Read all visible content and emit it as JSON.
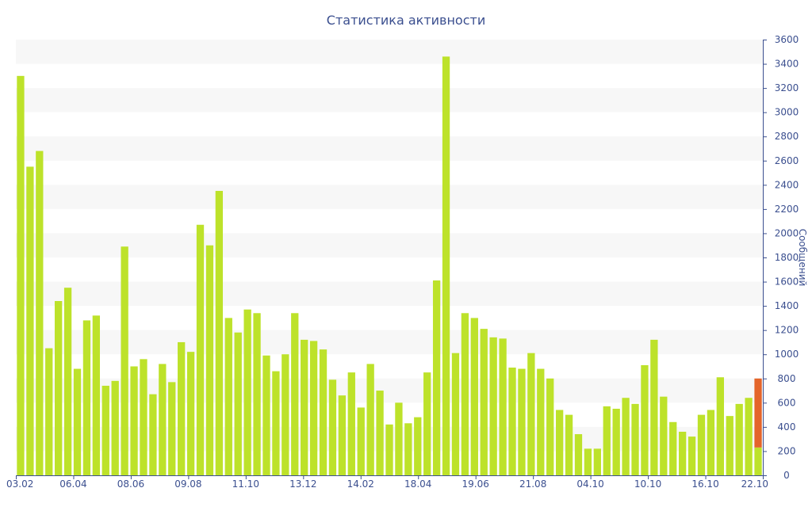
{
  "chart_data": {
    "type": "bar",
    "title": "Статистика активности",
    "xlabel": "",
    "ylabel": "Сообщений",
    "ylim": [
      0,
      3600
    ],
    "ytick_step": 200,
    "grid": "alternating horizontal bands",
    "y_axis_side": "right",
    "x_tick_labels": [
      "03.02",
      "06.04",
      "08.06",
      "09.08",
      "11.10",
      "13.12",
      "14.02",
      "18.04",
      "19.06",
      "21.08",
      "04.10",
      "10.10",
      "16.10",
      "22.10"
    ],
    "colors": {
      "bar": "#bde22a",
      "highlight": "#e4652a",
      "text": "#3b4f8f",
      "band": "#f7f7f7",
      "axis": "#3b4f8f"
    },
    "series": [
      {
        "values": [
          3300,
          2550,
          2680,
          1050,
          1440,
          1550,
          880,
          1280,
          1320,
          740,
          780,
          1890,
          900,
          960,
          670,
          920,
          770,
          1100,
          1020,
          2070,
          1900,
          2350,
          1300,
          1180,
          1370,
          1340,
          990,
          860,
          1000,
          1340,
          1120,
          1110,
          1040,
          790,
          660,
          850,
          560,
          920,
          700,
          420,
          600,
          430,
          480,
          850,
          1610,
          3460,
          1010,
          1340,
          1300,
          1210,
          1140,
          1130,
          890,
          880,
          1010,
          880,
          800,
          540,
          500,
          340,
          220,
          220,
          570,
          550,
          640,
          590,
          910,
          1120,
          650,
          440,
          360,
          320,
          500,
          540,
          810,
          490,
          590,
          640,
          230
        ]
      },
      {
        "values": [
          0,
          0,
          0,
          0,
          0,
          0,
          0,
          0,
          0,
          0,
          0,
          0,
          0,
          0,
          0,
          0,
          0,
          0,
          0,
          0,
          0,
          0,
          0,
          0,
          0,
          0,
          0,
          0,
          0,
          0,
          0,
          0,
          0,
          0,
          0,
          0,
          0,
          0,
          0,
          0,
          0,
          0,
          0,
          0,
          0,
          0,
          0,
          0,
          0,
          0,
          0,
          0,
          0,
          0,
          0,
          0,
          0,
          0,
          0,
          0,
          0,
          0,
          0,
          0,
          0,
          0,
          0,
          0,
          0,
          0,
          0,
          0,
          0,
          0,
          0,
          0,
          0,
          0,
          570
        ]
      }
    ]
  }
}
